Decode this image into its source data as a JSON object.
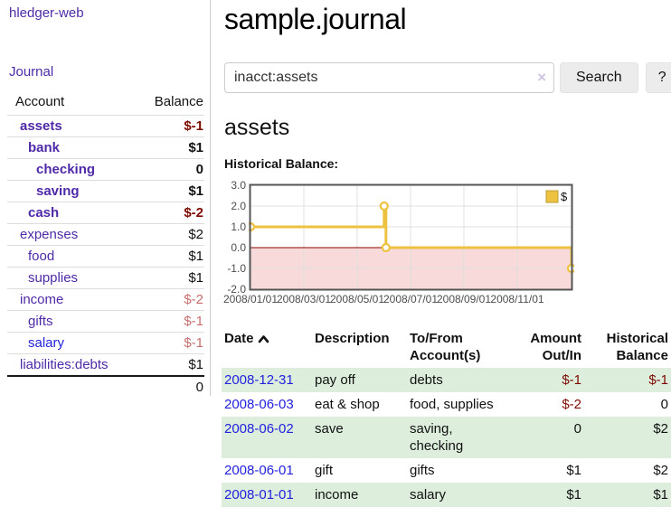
{
  "app": {
    "brand": "hledger-web",
    "nav_journal": "Journal"
  },
  "sidebar": {
    "headers": {
      "account": "Account",
      "balance": "Balance"
    },
    "accounts": [
      {
        "name": "assets",
        "depth": 1,
        "bold": true,
        "balance": "$-1"
      },
      {
        "name": "bank",
        "depth": 2,
        "bold": true,
        "balance": "$1"
      },
      {
        "name": "checking",
        "depth": 3,
        "bold": true,
        "balance": "0"
      },
      {
        "name": "saving",
        "depth": 3,
        "bold": true,
        "balance": "$1"
      },
      {
        "name": "cash",
        "depth": 2,
        "bold": true,
        "balance": "$-2"
      },
      {
        "name": "expenses",
        "depth": 1,
        "bold": false,
        "balance": "$2"
      },
      {
        "name": "food",
        "depth": 2,
        "bold": false,
        "balance": "$1"
      },
      {
        "name": "supplies",
        "depth": 2,
        "bold": false,
        "balance": "$1"
      },
      {
        "name": "income",
        "depth": 1,
        "bold": false,
        "balance": "$-2"
      },
      {
        "name": "gifts",
        "depth": 2,
        "bold": false,
        "balance": "$-1"
      },
      {
        "name": "salary",
        "depth": 2,
        "bold": false,
        "balance": "$-1",
        "link_color": "blue"
      },
      {
        "name": "liabilities:debts",
        "depth": 1,
        "bold": false,
        "balance": "$1"
      }
    ],
    "total": "0"
  },
  "header": {
    "title": "sample.journal"
  },
  "search": {
    "value": "inacct:assets",
    "clear_icon": "×",
    "button": "Search",
    "help_button": "?"
  },
  "account_page": {
    "heading": "assets",
    "chart_label": "Historical Balance:"
  },
  "chart_data": {
    "type": "line",
    "style": "step",
    "title": "Historical Balance:",
    "series": [
      {
        "name": "$",
        "color": "#EDC240",
        "x": [
          "2008-01-01",
          "2008-06-01",
          "2008-06-03",
          "2008-12-31"
        ],
        "y": [
          1,
          2,
          0,
          -1
        ]
      }
    ],
    "ylim": [
      -2.0,
      3.0
    ],
    "yticks": [
      3.0,
      2.0,
      1.0,
      0.0,
      -1.0,
      -2.0
    ],
    "xticks": [
      "2008/01/01",
      "2008/03/01",
      "2008/05/01",
      "2008/07/01",
      "2008/09/01",
      "2008/11/01"
    ],
    "legend": {
      "label": "$",
      "position": "top-right"
    },
    "grid": true,
    "negative_region_color": "#f9dada",
    "zero_line_color": "#8b0000"
  },
  "register": {
    "headers": {
      "date": "Date",
      "sort": "ascending",
      "description": "Description",
      "tofrom_l1": "To/From",
      "tofrom_l2": "Account(s)",
      "amount_l1": "Amount",
      "amount_l2": "Out/In",
      "hist_l1": "Historical",
      "hist_l2": "Balance"
    },
    "rows": [
      {
        "date": "2008-12-31",
        "description": "pay off",
        "accounts": "debts",
        "amount": "$-1",
        "balance": "$-1"
      },
      {
        "date": "2008-06-03",
        "description": "eat & shop",
        "accounts": "food, supplies",
        "amount": "$-2",
        "balance": "0"
      },
      {
        "date": "2008-06-02",
        "description": "save",
        "accounts": "saving,\ncheck",
        "accounts2": "saving,\nchecking",
        "amount": "0",
        "balance": "$2"
      },
      {
        "date": "2008-06-01",
        "description": "gift",
        "accounts": "gifts",
        "amount": "$1",
        "balance": "$2"
      },
      {
        "date": "2008-01-01",
        "description": "income",
        "accounts": "salary",
        "amount": "$1",
        "balance": "$1"
      }
    ]
  },
  "colors": {
    "link_purple": "#4f2aa8",
    "link_blue": "#2222dd",
    "negative_strong": "#7d0b00",
    "negative_soft": "#c76f6f",
    "row_shade_green": "#ddeedd",
    "chart_line_gold": "#EDC240"
  }
}
